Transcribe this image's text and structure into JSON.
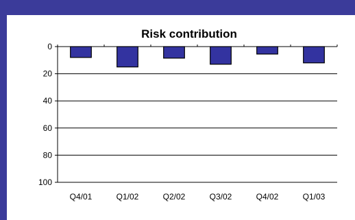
{
  "chart_data": {
    "type": "bar",
    "title": "Risk contribution",
    "xlabel": "",
    "ylabel": "",
    "categories": [
      "Q4/01",
      "Q1/02",
      "Q2/02",
      "Q3/02",
      "Q4/02",
      "Q1/03"
    ],
    "values": [
      8,
      15,
      8.5,
      13,
      5.5,
      12
    ],
    "ylim": [
      0,
      100
    ],
    "y_inverted": true,
    "yticks": [
      0,
      20,
      40,
      60,
      80,
      100
    ],
    "grid": true,
    "legend": "none",
    "bar_color": "#3333a0"
  }
}
